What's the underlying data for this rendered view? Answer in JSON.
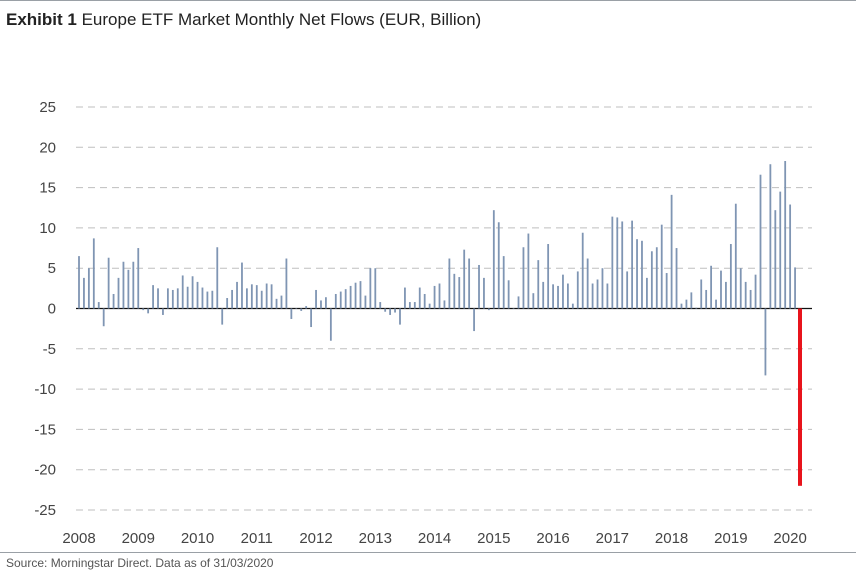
{
  "header": {
    "exhibit_label": "Exhibit 1",
    "title": "Europe ETF Market Monthly Net Flows (EUR, Billion)"
  },
  "footer": {
    "source": "Source: Morningstar Direct. Data as of 31/03/2020"
  },
  "colors": {
    "bar": "#7f95b3",
    "highlight": "#e8141c",
    "grid": "#bfbfbf",
    "zero_line": "#111111"
  },
  "chart_data": {
    "type": "bar",
    "title": "Europe ETF Market Monthly Net Flows (EUR, Billion)",
    "xlabel": "",
    "ylabel": "",
    "ylim": [
      -25,
      25
    ],
    "yticks": [
      25,
      20,
      15,
      10,
      5,
      0,
      -5,
      -10,
      -15,
      -20,
      -25
    ],
    "x_year_labels": [
      "2008",
      "2009",
      "2010",
      "2011",
      "2012",
      "2013",
      "2014",
      "2015",
      "2016",
      "2017",
      "2018",
      "2019",
      "2020"
    ],
    "grid": "horizontal dashed",
    "highlight": {
      "period": "2020-03",
      "value": -22.0,
      "color": "#e8141c"
    },
    "series": [
      {
        "name": "Monthly net flows",
        "values": [
          6.5,
          3.8,
          5.0,
          8.7,
          0.8,
          -2.2,
          6.3,
          1.8,
          3.8,
          5.8,
          4.8,
          5.8,
          7.5,
          -0.2,
          -0.6,
          2.9,
          2.5,
          -0.8,
          2.5,
          2.3,
          2.5,
          4.1,
          2.7,
          4.0,
          3.3,
          2.6,
          2.1,
          2.2,
          7.6,
          -2.0,
          1.3,
          2.3,
          3.3,
          5.7,
          2.5,
          3.0,
          2.9,
          2.2,
          3.1,
          3.0,
          1.2,
          1.6,
          6.2,
          -1.3,
          0.0,
          -0.3,
          0.3,
          -2.3,
          2.3,
          1.0,
          1.4,
          -4.0,
          1.8,
          2.1,
          2.4,
          2.8,
          3.2,
          3.4,
          1.6,
          5.0,
          5.0,
          0.8,
          -0.4,
          -0.8,
          -0.5,
          -2.0,
          2.6,
          0.8,
          0.8,
          2.6,
          1.8,
          0.6,
          2.8,
          3.1,
          1.0,
          6.2,
          4.3,
          3.9,
          7.3,
          6.2,
          -2.8,
          5.4,
          3.8,
          -0.2,
          12.2,
          10.7,
          6.5,
          3.5,
          0.0,
          1.5,
          7.6,
          9.3,
          1.9,
          6.0,
          3.3,
          8.0,
          3.0,
          2.8,
          4.2,
          3.1,
          0.6,
          4.6,
          9.4,
          6.2,
          3.1,
          3.6,
          5.0,
          3.1,
          11.4,
          11.3,
          10.8,
          4.6,
          10.9,
          8.6,
          8.4,
          3.8,
          7.1,
          7.6,
          10.4,
          4.4,
          14.1,
          7.5,
          0.6,
          1.1,
          2.0,
          0.1,
          3.6,
          2.3,
          5.3,
          1.1,
          4.7,
          3.3,
          8.0,
          13.0,
          5.0,
          3.3,
          2.3,
          4.2,
          16.6,
          -8.3,
          17.9,
          12.2,
          14.5,
          18.3,
          12.9,
          5.1,
          -22.0
        ]
      }
    ]
  }
}
